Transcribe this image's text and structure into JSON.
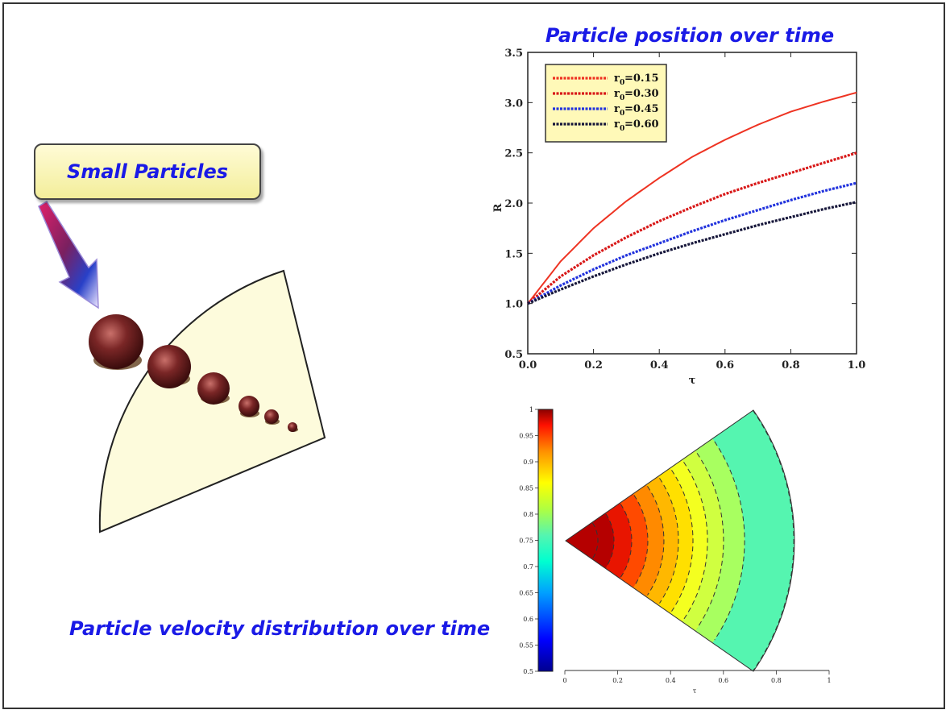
{
  "callout": {
    "text": "Small Particles"
  },
  "caption": {
    "text": "Particle velocity distribution over time"
  },
  "colors": {
    "title_blue": "#1a1ae6",
    "sector_fill": "#fdfbdc",
    "particle": "#6b1f1f",
    "legend_bg": "#fff9b8",
    "contour_teal": "#55f5b0"
  },
  "particles": {
    "count": 6
  },
  "chart_data": [
    {
      "type": "line",
      "title": "Particle position over time",
      "xlabel": "τ",
      "ylabel": "R",
      "xlim": [
        0.0,
        1.0
      ],
      "ylim": [
        0.5,
        3.5
      ],
      "xticks": [
        "0.0",
        "0.2",
        "0.4",
        "0.6",
        "0.8",
        "1.0"
      ],
      "yticks": [
        "0.5",
        "1.0",
        "1.5",
        "2.0",
        "2.5",
        "3.0",
        "3.5"
      ],
      "legend_position": "top-left",
      "x": [
        0.0,
        0.1,
        0.2,
        0.3,
        0.4,
        0.5,
        0.6,
        0.7,
        0.8,
        0.9,
        1.0
      ],
      "series": [
        {
          "name_main": "r",
          "name_sub": "0",
          "name_value": "=0.15",
          "color": "#ee3322",
          "values": [
            1.0,
            1.42,
            1.75,
            2.02,
            2.25,
            2.46,
            2.63,
            2.78,
            2.91,
            3.01,
            3.1
          ]
        },
        {
          "name_main": "r",
          "name_sub": "0",
          "name_value": "=0.30",
          "color": "#d81818",
          "values": [
            1.0,
            1.27,
            1.48,
            1.66,
            1.82,
            1.96,
            2.09,
            2.2,
            2.3,
            2.4,
            2.5
          ]
        },
        {
          "name_main": "r",
          "name_sub": "0",
          "name_value": "=0.45",
          "color": "#2233dd",
          "values": [
            1.0,
            1.18,
            1.34,
            1.48,
            1.6,
            1.72,
            1.83,
            1.93,
            2.03,
            2.12,
            2.2
          ]
        },
        {
          "name_main": "r",
          "name_sub": "0",
          "name_value": "=0.60",
          "color": "#16163a",
          "values": [
            1.0,
            1.14,
            1.27,
            1.39,
            1.5,
            1.6,
            1.69,
            1.78,
            1.86,
            1.94,
            2.01
          ]
        }
      ]
    },
    {
      "type": "heatmap",
      "xlabel": "τ",
      "xticks": [
        "0",
        "0.2",
        "0.4",
        "0.6",
        "0.8",
        "1"
      ],
      "colorbar_range": [
        0.5,
        1.0
      ],
      "colorbar_ticks": [
        "0.5",
        "0.55",
        "0.6",
        "0.65",
        "0.7",
        "0.75",
        "0.8",
        "0.85",
        "0.9",
        "0.95",
        "1"
      ],
      "contour_levels": 9
    }
  ]
}
